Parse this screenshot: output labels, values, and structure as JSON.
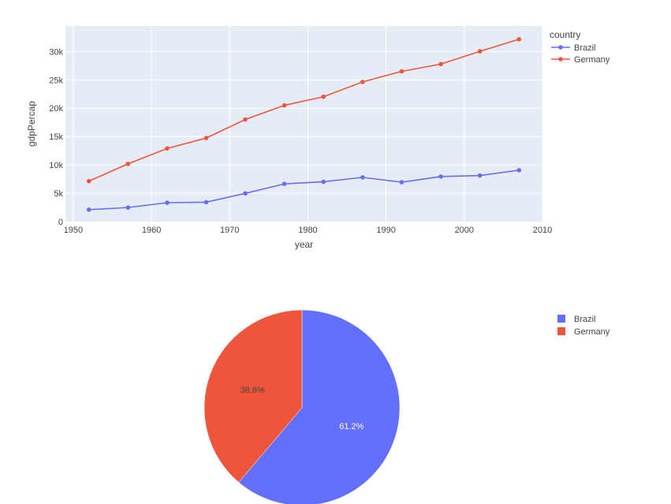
{
  "colors": {
    "brazil": "#636efa",
    "germany": "#ef553b",
    "plot_bg": "#e5ecf6",
    "grid": "#ffffff",
    "text": "#444444"
  },
  "chart_data": [
    {
      "type": "line",
      "title": "",
      "xlabel": "year",
      "ylabel": "gdpPercap",
      "xlim": [
        1949,
        2010
      ],
      "ylim": [
        0,
        34500
      ],
      "x_ticks": [
        1950,
        1960,
        1970,
        1980,
        1990,
        2000,
        2010
      ],
      "x_tick_labels": [
        "1950",
        "1960",
        "1970",
        "1980",
        "1990",
        "2000",
        "2010"
      ],
      "y_ticks": [
        0,
        5000,
        10000,
        15000,
        20000,
        25000,
        30000
      ],
      "y_tick_labels": [
        "0",
        "5k",
        "10k",
        "15k",
        "20k",
        "25k",
        "30k"
      ],
      "legend_title": "country",
      "legend_position": "top-right",
      "grid": true,
      "x": [
        1952,
        1957,
        1962,
        1967,
        1972,
        1977,
        1982,
        1987,
        1992,
        1997,
        2002,
        2007
      ],
      "series": [
        {
          "name": "Brazil",
          "color": "#636efa",
          "values": [
            2109,
            2487,
            3337,
            3430,
            4986,
            6660,
            7031,
            7807,
            6950,
            7958,
            8131,
            9066
          ]
        },
        {
          "name": "Germany",
          "color": "#ef553b",
          "values": [
            7144,
            10188,
            12902,
            14746,
            18016,
            20513,
            22032,
            24639,
            26505,
            27789,
            30036,
            32170
          ]
        }
      ]
    },
    {
      "type": "pie",
      "legend_position": "top-right",
      "slices": [
        {
          "name": "Brazil",
          "value": 61.2,
          "label": "61.2%",
          "color": "#636efa",
          "label_color": "#ffffff"
        },
        {
          "name": "Germany",
          "value": 38.8,
          "label": "38.8%",
          "color": "#ef553b",
          "label_color": "#444444"
        }
      ]
    }
  ]
}
